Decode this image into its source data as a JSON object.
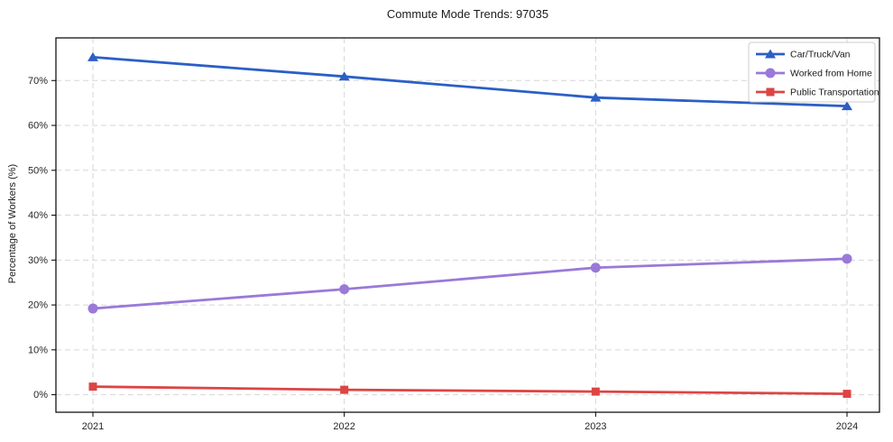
{
  "chart_data": {
    "type": "line",
    "title": "Commute Mode Trends: 97035",
    "xlabel": "",
    "ylabel": "Percentage of Workers (%)",
    "categories": [
      "2021",
      "2022",
      "2023",
      "2024"
    ],
    "series": [
      {
        "name": "Car/Truck/Van",
        "marker": "triangle",
        "color": "#2b5fc7",
        "values": [
          75.2,
          70.9,
          66.2,
          64.3
        ]
      },
      {
        "name": "Worked from Home",
        "marker": "circle",
        "color": "#9a79d8",
        "values": [
          19.2,
          23.5,
          28.3,
          30.3
        ]
      },
      {
        "name": "Public Transportation",
        "marker": "square",
        "color": "#dd4444",
        "values": [
          1.8,
          1.1,
          0.7,
          0.2
        ]
      }
    ],
    "y_ticks": [
      "0%",
      "10%",
      "20%",
      "30%",
      "40%",
      "50%",
      "60%",
      "70%"
    ],
    "y_tick_values": [
      0,
      10,
      20,
      30,
      40,
      50,
      60,
      70
    ],
    "ylim": [
      -3.9,
      79.5
    ],
    "grid": true,
    "grid_style": "dashed",
    "legend_position": "upper right",
    "colors": {
      "frame": "#000000",
      "grid": "#d6d6d6",
      "tick_text": "#262626",
      "legend_border": "#cccccc",
      "legend_bg": "#ffffff"
    }
  }
}
